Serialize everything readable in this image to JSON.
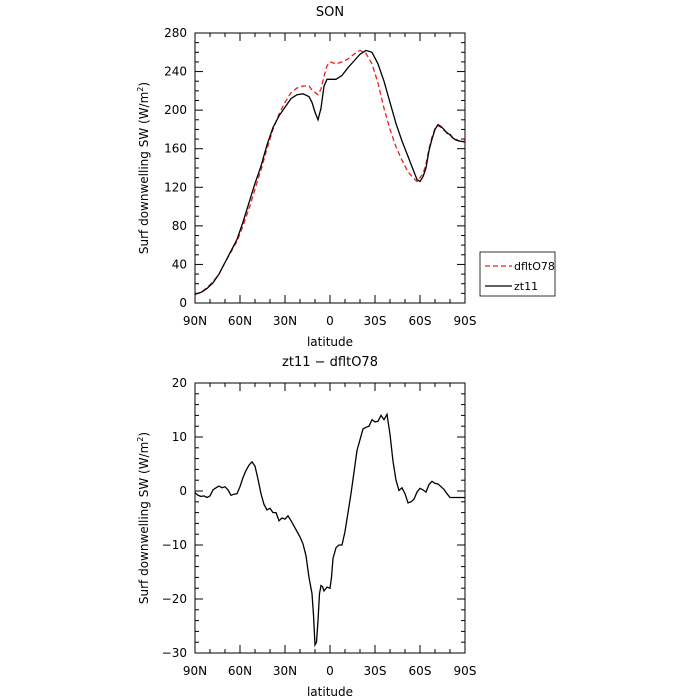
{
  "chart_data": [
    {
      "type": "line",
      "title": "SON",
      "xlabel": "latitude",
      "ylabel": "Surf downwelling SW (W/m²)",
      "ylabel_parts": [
        "Surf downwelling SW (W/m",
        "2",
        ")"
      ],
      "xlim": [
        -90,
        90
      ],
      "ylim": [
        0,
        280
      ],
      "x_ticks": [
        {
          "value": -90,
          "label": "90N"
        },
        {
          "value": -60,
          "label": "60N"
        },
        {
          "value": -30,
          "label": "30N"
        },
        {
          "value": 0,
          "label": "0"
        },
        {
          "value": 30,
          "label": "30S"
        },
        {
          "value": 60,
          "label": "60S"
        },
        {
          "value": 90,
          "label": "90S"
        }
      ],
      "y_ticks": [
        {
          "value": 0,
          "label": "0"
        },
        {
          "value": 40,
          "label": "40"
        },
        {
          "value": 80,
          "label": "80"
        },
        {
          "value": 120,
          "label": "120"
        },
        {
          "value": 160,
          "label": "160"
        },
        {
          "value": 200,
          "label": "200"
        },
        {
          "value": 240,
          "label": "240"
        },
        {
          "value": 280,
          "label": "280"
        }
      ],
      "legend_position": "right",
      "series": [
        {
          "name": "dfltO78",
          "color": "#e8211e",
          "dash": "dashed",
          "points": [
            [
              -90,
              9
            ],
            [
              -86,
              11
            ],
            [
              -82,
              16
            ],
            [
              -78,
              22
            ],
            [
              -74,
              30
            ],
            [
              -70,
              42
            ],
            [
              -66,
              53
            ],
            [
              -62,
              64
            ],
            [
              -58,
              80
            ],
            [
              -54,
              98
            ],
            [
              -50,
              118
            ],
            [
              -46,
              138
            ],
            [
              -42,
              160
            ],
            [
              -38,
              180
            ],
            [
              -34,
              196
            ],
            [
              -30,
              208
            ],
            [
              -26,
              218
            ],
            [
              -22,
              223
            ],
            [
              -18,
              225
            ],
            [
              -14,
              225
            ],
            [
              -12,
              221
            ],
            [
              -8,
              216
            ],
            [
              -6,
              222
            ],
            [
              -4,
              235
            ],
            [
              -2,
              246
            ],
            [
              0,
              250
            ],
            [
              4,
              248
            ],
            [
              8,
              250
            ],
            [
              12,
              253
            ],
            [
              16,
              258
            ],
            [
              20,
              262
            ],
            [
              24,
              259
            ],
            [
              28,
              248
            ],
            [
              32,
              228
            ],
            [
              36,
              202
            ],
            [
              40,
              180
            ],
            [
              44,
              162
            ],
            [
              48,
              148
            ],
            [
              52,
              136
            ],
            [
              56,
              129
            ],
            [
              58,
              126
            ],
            [
              62,
              134
            ],
            [
              64,
              144
            ],
            [
              66,
              160
            ],
            [
              68,
              172
            ],
            [
              70,
              181
            ],
            [
              72,
              184
            ],
            [
              74,
              182
            ],
            [
              76,
              179
            ],
            [
              78,
              177
            ],
            [
              80,
              174
            ],
            [
              82,
              171
            ],
            [
              84,
              170
            ],
            [
              86,
              168
            ],
            [
              90,
              168
            ]
          ]
        },
        {
          "name": "zt11",
          "color": "#000000",
          "dash": "solid",
          "points": [
            [
              -90,
              9
            ],
            [
              -86,
              11
            ],
            [
              -82,
              15
            ],
            [
              -78,
              21
            ],
            [
              -74,
              30
            ],
            [
              -70,
              42
            ],
            [
              -66,
              54
            ],
            [
              -62,
              66
            ],
            [
              -58,
              84
            ],
            [
              -54,
              104
            ],
            [
              -50,
              124
            ],
            [
              -46,
              142
            ],
            [
              -42,
              164
            ],
            [
              -38,
              182
            ],
            [
              -34,
              194
            ],
            [
              -30,
              203
            ],
            [
              -26,
              212
            ],
            [
              -22,
              216
            ],
            [
              -18,
              217
            ],
            [
              -14,
              214
            ],
            [
              -12,
              208
            ],
            [
              -10,
              198
            ],
            [
              -8,
              190
            ],
            [
              -6,
              202
            ],
            [
              -4,
              225
            ],
            [
              -2,
              232
            ],
            [
              2,
              232
            ],
            [
              4,
              232
            ],
            [
              8,
              236
            ],
            [
              12,
              244
            ],
            [
              16,
              251
            ],
            [
              20,
              258
            ],
            [
              24,
              262
            ],
            [
              28,
              260
            ],
            [
              32,
              248
            ],
            [
              36,
              230
            ],
            [
              40,
              208
            ],
            [
              44,
              186
            ],
            [
              48,
              168
            ],
            [
              52,
              152
            ],
            [
              56,
              136
            ],
            [
              58,
              128
            ],
            [
              60,
              126
            ],
            [
              62,
              131
            ],
            [
              64,
              140
            ],
            [
              66,
              158
            ],
            [
              68,
              170
            ],
            [
              70,
              180
            ],
            [
              72,
              185
            ],
            [
              74,
              183
            ],
            [
              76,
              180
            ],
            [
              78,
              176
            ],
            [
              80,
              175
            ],
            [
              82,
              171
            ],
            [
              84,
              169
            ],
            [
              86,
              168
            ],
            [
              90,
              167
            ]
          ]
        }
      ]
    },
    {
      "type": "line",
      "title": "zt11 − dfltO78",
      "xlabel": "latitude",
      "ylabel": "Surf downwelling SW (W/m²)",
      "ylabel_parts": [
        "Surf downwelling SW (W/m",
        "2",
        ")"
      ],
      "xlim": [
        -90,
        90
      ],
      "ylim": [
        -30,
        20
      ],
      "x_ticks": [
        {
          "value": -90,
          "label": "90N"
        },
        {
          "value": -60,
          "label": "60N"
        },
        {
          "value": -30,
          "label": "30N"
        },
        {
          "value": 0,
          "label": "0"
        },
        {
          "value": 30,
          "label": "30S"
        },
        {
          "value": 60,
          "label": "60S"
        },
        {
          "value": 90,
          "label": "90S"
        }
      ],
      "y_ticks": [
        {
          "value": -30,
          "label": "−30"
        },
        {
          "value": -20,
          "label": "−20"
        },
        {
          "value": -10,
          "label": "−10"
        },
        {
          "value": 0,
          "label": "0"
        },
        {
          "value": 10,
          "label": "10"
        },
        {
          "value": 20,
          "label": "20"
        }
      ],
      "series": [
        {
          "color": "#000000",
          "dash": "solid",
          "points": [
            [
              -90,
              -0.3
            ],
            [
              -88,
              -0.8
            ],
            [
              -86,
              -1.0
            ],
            [
              -84,
              -0.9
            ],
            [
              -82,
              -1.2
            ],
            [
              -80,
              -0.9
            ],
            [
              -78,
              0.2
            ],
            [
              -76,
              0.6
            ],
            [
              -74,
              0.9
            ],
            [
              -72,
              0.6
            ],
            [
              -70,
              0.8
            ],
            [
              -68,
              0.2
            ],
            [
              -66,
              -0.8
            ],
            [
              -64,
              -0.6
            ],
            [
              -62,
              -0.5
            ],
            [
              -60,
              0.8
            ],
            [
              -58,
              2.5
            ],
            [
              -56,
              3.8
            ],
            [
              -54,
              4.8
            ],
            [
              -52,
              5.4
            ],
            [
              -50,
              4.6
            ],
            [
              -48,
              2.2
            ],
            [
              -46,
              -0.5
            ],
            [
              -44,
              -2.5
            ],
            [
              -42,
              -3.5
            ],
            [
              -40,
              -3.2
            ],
            [
              -38,
              -4.0
            ],
            [
              -36,
              -4.0
            ],
            [
              -34,
              -5.5
            ],
            [
              -32,
              -5.0
            ],
            [
              -30,
              -5.2
            ],
            [
              -28,
              -4.6
            ],
            [
              -26,
              -5.5
            ],
            [
              -24,
              -6.5
            ],
            [
              -22,
              -7.5
            ],
            [
              -20,
              -8.5
            ],
            [
              -18,
              -9.8
            ],
            [
              -16,
              -12
            ],
            [
              -14,
              -16
            ],
            [
              -12,
              -19
            ],
            [
              -11,
              -23
            ],
            [
              -10,
              -28.5
            ],
            [
              -9,
              -28.0
            ],
            [
              -8,
              -24
            ],
            [
              -7,
              -19
            ],
            [
              -6,
              -17.5
            ],
            [
              -5,
              -17.7
            ],
            [
              -4,
              -18.5
            ],
            [
              -2,
              -17.8
            ],
            [
              0,
              -18.0
            ],
            [
              1,
              -16
            ],
            [
              2,
              -12.5
            ],
            [
              4,
              -10.5
            ],
            [
              6,
              -10
            ],
            [
              8,
              -10
            ],
            [
              10,
              -7.5
            ],
            [
              12,
              -4
            ],
            [
              14,
              -0.5
            ],
            [
              16,
              3.5
            ],
            [
              18,
              7.5
            ],
            [
              20,
              9.5
            ],
            [
              22,
              11.5
            ],
            [
              24,
              11.8
            ],
            [
              26,
              12.0
            ],
            [
              28,
              13.2
            ],
            [
              30,
              12.8
            ],
            [
              32,
              12.9
            ],
            [
              34,
              14.0
            ],
            [
              36,
              13.2
            ],
            [
              38,
              14.2
            ],
            [
              40,
              10.5
            ],
            [
              42,
              5.5
            ],
            [
              44,
              2.0
            ],
            [
              46,
              0.1
            ],
            [
              48,
              0.6
            ],
            [
              50,
              -0.5
            ],
            [
              52,
              -2.2
            ],
            [
              54,
              -2.0
            ],
            [
              56,
              -1.5
            ],
            [
              58,
              -0.2
            ],
            [
              60,
              0.5
            ],
            [
              62,
              0.2
            ],
            [
              64,
              -0.2
            ],
            [
              66,
              1.2
            ],
            [
              68,
              1.8
            ],
            [
              70,
              1.4
            ],
            [
              72,
              1.3
            ],
            [
              74,
              0.8
            ],
            [
              76,
              0.3
            ],
            [
              78,
              -0.5
            ],
            [
              80,
              -1.2
            ],
            [
              90,
              -1.2
            ]
          ]
        }
      ]
    }
  ]
}
